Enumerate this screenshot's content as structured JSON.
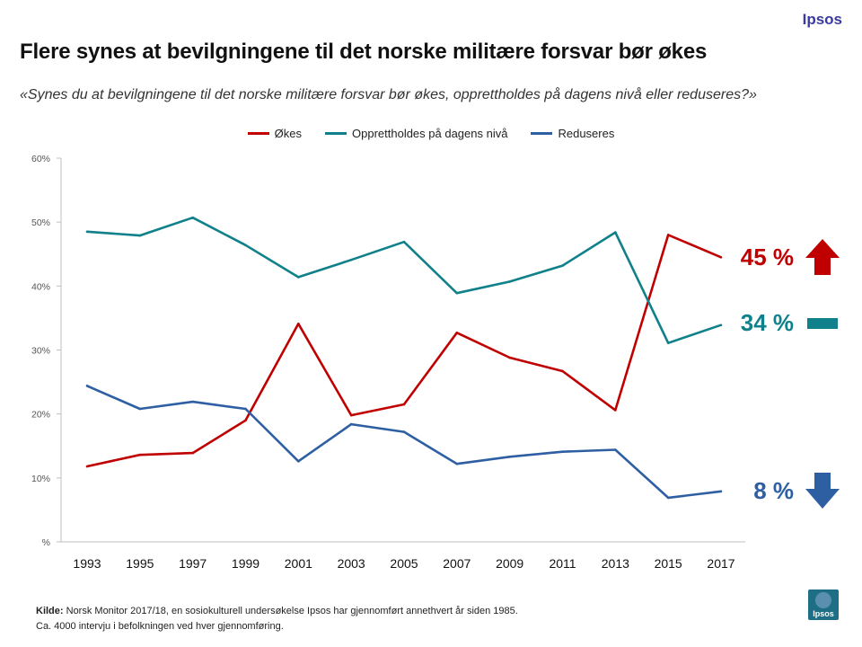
{
  "header": {
    "brand": "Ipsos",
    "brand_color": "#3a3aa0",
    "title": "Flere synes at bevilgningene til det norske militære forsvar bør økes",
    "subtitle": "«Synes du at bevilgningene til det norske militære forsvar bør økes, opprettholdes på dagens nivå eller reduseres?»"
  },
  "chart_data": {
    "type": "line",
    "title": "Flere synes at bevilgningene til det norske militære forsvar bør økes",
    "xlabel": "",
    "ylabel": "",
    "categories": [
      "1993",
      "1995",
      "1997",
      "1999",
      "2001",
      "2003",
      "2005",
      "2007",
      "2009",
      "2011",
      "2013",
      "2015",
      "2017"
    ],
    "ylim": [
      0,
      60
    ],
    "yticks": [
      0,
      10,
      20,
      30,
      40,
      50,
      60
    ],
    "ytick_labels": [
      "%",
      "10%",
      "20%",
      "30%",
      "40%",
      "50%",
      "60%"
    ],
    "grid": false,
    "legend_position": "top-center",
    "series": [
      {
        "name": "Økes",
        "color": "#c00000",
        "values": [
          11.8,
          13.6,
          13.9,
          19.0,
          34.1,
          19.8,
          21.5,
          32.7,
          28.8,
          26.7,
          20.6,
          48.0,
          44.5
        ],
        "end_label": "45 %",
        "indicator": "up-arrow"
      },
      {
        "name": "Opprettholdes på dagens nivå",
        "color": "#10808a",
        "values": [
          48.5,
          47.9,
          50.7,
          46.4,
          41.4,
          44.1,
          46.9,
          38.9,
          40.7,
          43.2,
          48.4,
          31.1,
          33.9
        ],
        "end_label": "34 %",
        "indicator": "flat-bar"
      },
      {
        "name": "Reduseres",
        "color": "#2e5fa3",
        "values": [
          24.4,
          20.8,
          21.9,
          20.8,
          12.6,
          18.4,
          17.2,
          12.2,
          13.3,
          14.1,
          14.4,
          6.9,
          7.9
        ],
        "end_label": "8 %",
        "indicator": "down-arrow"
      }
    ]
  },
  "footer": {
    "source_label": "Kilde:",
    "source_text": " Norsk Monitor 2017/18, en sosiokulturell undersøkelse Ipsos har gjennomført annethvert  år siden 1985.",
    "note": "Ca. 4000 intervju i befolkningen ved hver  gjennomføring.",
    "logo_text": "Ipsos"
  }
}
